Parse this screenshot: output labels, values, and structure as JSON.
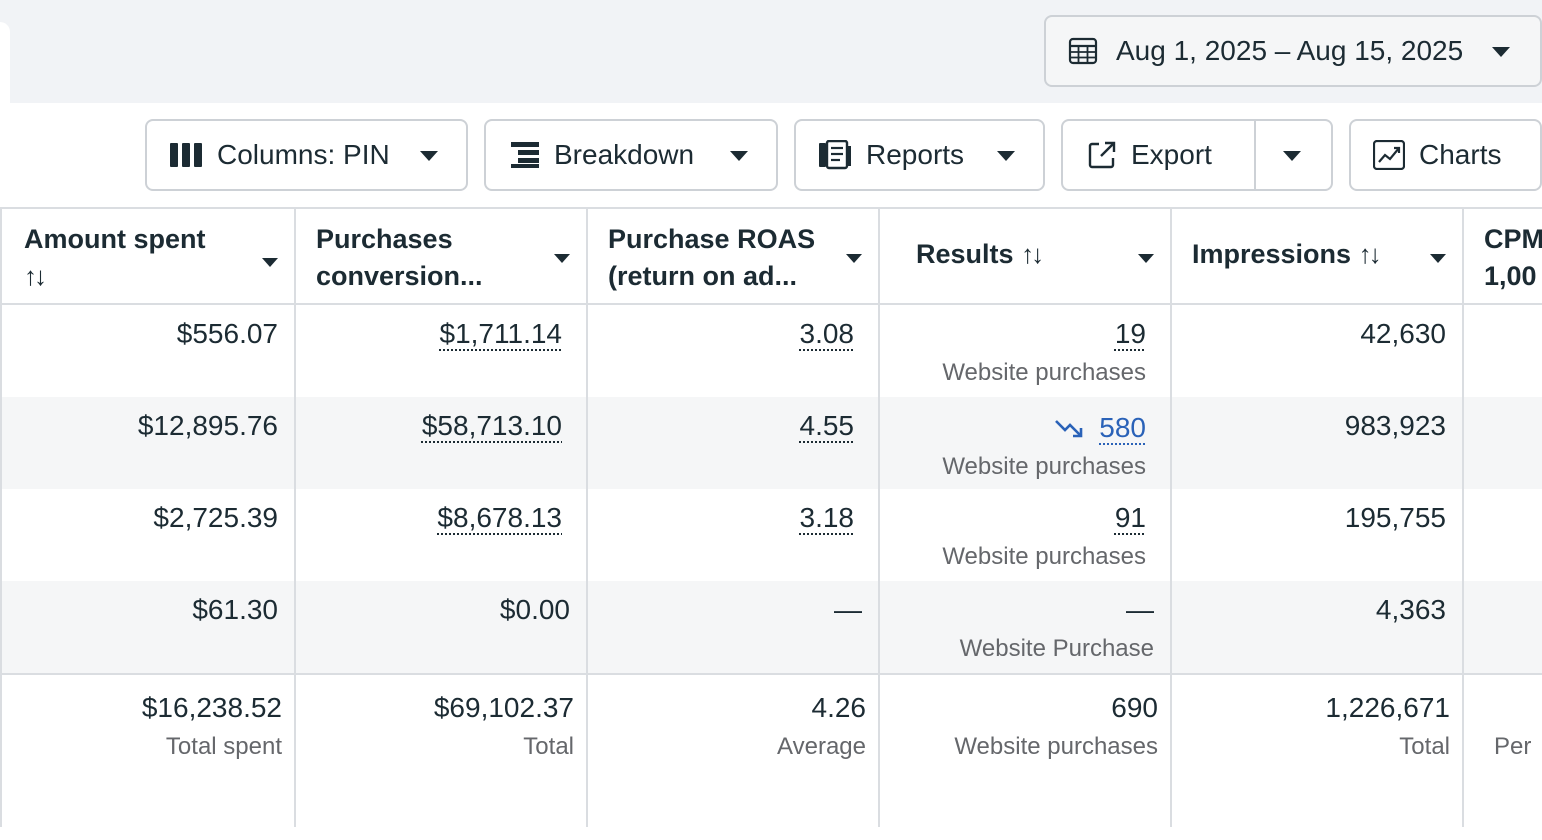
{
  "date_range": {
    "label": "Aug 1, 2025 – Aug 15, 2025",
    "icon": "calendar-icon"
  },
  "toolbar": {
    "columns_label": "Columns: PIN",
    "breakdown_label": "Breakdown",
    "reports_label": "Reports",
    "export_label": "Export",
    "charts_label": "Charts"
  },
  "table": {
    "headers": {
      "amount_spent_line1": "Amount spent",
      "amount_spent_sort": "↑↓",
      "purchases_line1": "Purchases",
      "purchases_line2": "conversion...",
      "roas_line1": "Purchase ROAS",
      "roas_line2": "(return on ad...",
      "results": "Results",
      "results_sort": "↑↓",
      "impressions": "Impressions",
      "impressions_sort": "↑↓",
      "cpm_line1": "CPM",
      "cpm_line2": "1,00"
    },
    "rows": [
      {
        "amount": "$556.07",
        "purchases": "$1,711.14",
        "roas": "3.08",
        "results": "19",
        "results_sub": "Website purchases",
        "impressions": "42,630"
      },
      {
        "amount": "$12,895.76",
        "purchases": "$58,713.10",
        "roas": "4.55",
        "results": "580",
        "results_sub": "Website purchases",
        "impressions": "983,923"
      },
      {
        "amount": "$2,725.39",
        "purchases": "$8,678.13",
        "roas": "3.18",
        "results": "91",
        "results_sub": "Website purchases",
        "impressions": "195,755"
      },
      {
        "amount": "$61.30",
        "purchases": "$0.00",
        "roas": "—",
        "results": "—",
        "results_sub": "Website Purchase",
        "impressions": "4,363"
      }
    ],
    "totals": {
      "amount": "$16,238.52",
      "amount_sub": "Total spent",
      "purchases": "$69,102.37",
      "purchases_sub": "Total",
      "roas": "4.26",
      "roas_sub": "Average",
      "results": "690",
      "results_sub": "Website purchases",
      "impressions": "1,226,671",
      "impressions_sub": "Total",
      "cpm_sub": "Per"
    }
  },
  "colors": {
    "link_blue": "#2a62b8",
    "text": "#1c2b33",
    "muted": "#65676b",
    "border": "#dadde1",
    "row_alt": "#f5f6f7"
  }
}
